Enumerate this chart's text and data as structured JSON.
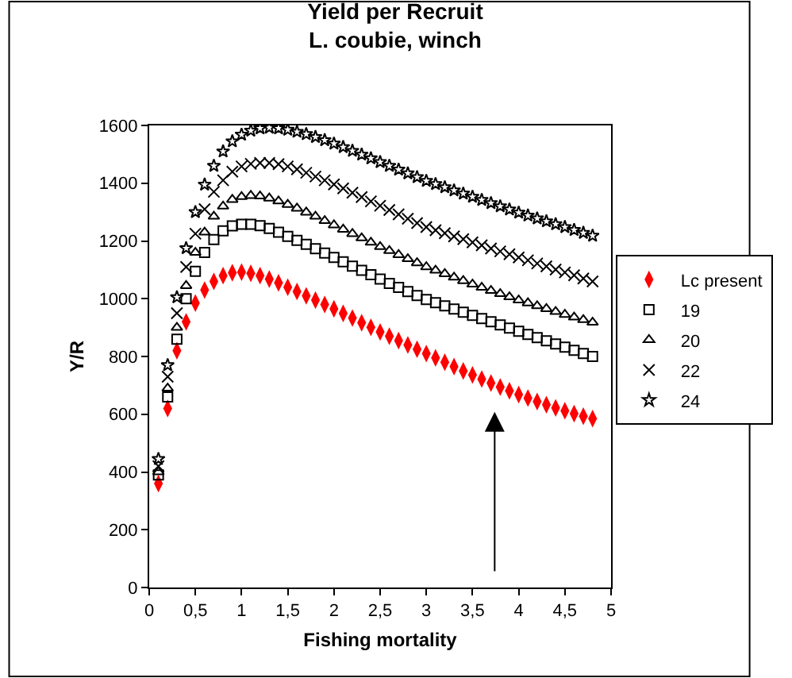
{
  "chart_data": {
    "type": "scatter",
    "title": "Yield per Recruit\nL. coubie, winch",
    "xlabel": "Fishing mortality",
    "ylabel": "Y/R",
    "x": [
      0.1,
      0.2,
      0.3,
      0.4,
      0.5,
      0.6,
      0.7,
      0.8,
      0.9,
      1.0,
      1.1,
      1.2,
      1.3,
      1.4,
      1.5,
      1.6,
      1.7,
      1.8,
      1.9,
      2.0,
      2.1,
      2.2,
      2.3,
      2.4,
      2.5,
      2.6,
      2.7,
      2.8,
      2.9,
      3.0,
      3.1,
      3.2,
      3.3,
      3.4,
      3.5,
      3.6,
      3.7,
      3.8,
      3.9,
      4.0,
      4.1,
      4.2,
      4.3,
      4.4,
      4.5,
      4.6,
      4.7,
      4.8
    ],
    "series": [
      {
        "name": "Lc present",
        "color": "#ff0000",
        "values": [
          360,
          620,
          820,
          920,
          985,
          1030,
          1060,
          1080,
          1090,
          1092,
          1088,
          1080,
          1068,
          1055,
          1040,
          1025,
          1010,
          995,
          980,
          965,
          949,
          933,
          917,
          901,
          885,
          870,
          855,
          840,
          825,
          810,
          795,
          780,
          765,
          750,
          736,
          722,
          708,
          694,
          681,
          668,
          656,
          644,
          633,
          622,
          612,
          602,
          593,
          585
        ]
      },
      {
        "name": "19",
        "color": "#000000",
        "marker": "square",
        "values": [
          390,
          660,
          860,
          1000,
          1095,
          1160,
          1205,
          1235,
          1252,
          1258,
          1258,
          1253,
          1243,
          1230,
          1216,
          1202,
          1188,
          1173,
          1158,
          1143,
          1128,
          1113,
          1098,
          1083,
          1068,
          1053,
          1039,
          1025,
          1011,
          997,
          986,
          975,
          964,
          953,
          942,
          931,
          920,
          909,
          898,
          887,
          876,
          865,
          854,
          843,
          832,
          821,
          810,
          800
        ]
      },
      {
        "name": "20",
        "color": "#000000",
        "marker": "triangle",
        "values": [
          400,
          690,
          900,
          1045,
          1160,
          1230,
          1285,
          1320,
          1343,
          1353,
          1357,
          1355,
          1348,
          1338,
          1326,
          1313,
          1299,
          1285,
          1270,
          1255,
          1240,
          1225,
          1210,
          1195,
          1180,
          1166,
          1152,
          1138,
          1124,
          1110,
          1098,
          1086,
          1074,
          1062,
          1050,
          1039,
          1028,
          1017,
          1006,
          995,
          985,
          975,
          965,
          955,
          945,
          936,
          927,
          918
        ]
      },
      {
        "name": "22",
        "color": "#000000",
        "marker": "cross",
        "values": [
          420,
          730,
          950,
          1110,
          1225,
          1310,
          1370,
          1410,
          1440,
          1458,
          1467,
          1470,
          1470,
          1466,
          1458,
          1448,
          1436,
          1423,
          1410,
          1396,
          1382,
          1367,
          1352,
          1337,
          1322,
          1307,
          1292,
          1277,
          1262,
          1248,
          1237,
          1227,
          1216,
          1206,
          1195,
          1185,
          1174,
          1164,
          1154,
          1143,
          1133,
          1122,
          1112,
          1101,
          1091,
          1081,
          1070,
          1060
        ]
      },
      {
        "name": "24",
        "color": "#000000",
        "marker": "star",
        "values": [
          445,
          770,
          1005,
          1175,
          1300,
          1395,
          1460,
          1510,
          1545,
          1568,
          1582,
          1590,
          1592,
          1590,
          1585,
          1578,
          1570,
          1560,
          1549,
          1537,
          1525,
          1512,
          1499,
          1486,
          1473,
          1460,
          1447,
          1434,
          1421,
          1408,
          1397,
          1386,
          1375,
          1364,
          1353,
          1342,
          1331,
          1320,
          1309,
          1298,
          1288,
          1278,
          1268,
          1258,
          1248,
          1238,
          1228,
          1218
        ]
      }
    ],
    "xlim": [
      0,
      5
    ],
    "ylim": [
      0,
      1600
    ],
    "xticks": [
      0,
      {
        "value": 0.5,
        "label": "0,5"
      },
      1,
      {
        "value": 1.5,
        "label": "1,5"
      },
      2,
      {
        "value": 2.5,
        "label": "2,5"
      },
      3,
      {
        "value": 3.5,
        "label": "3,5"
      },
      4,
      {
        "value": 4.5,
        "label": "4,5"
      },
      5
    ],
    "yticks": [
      0,
      200,
      400,
      600,
      800,
      1000,
      1200,
      1400,
      1600
    ],
    "legend": "right"
  }
}
